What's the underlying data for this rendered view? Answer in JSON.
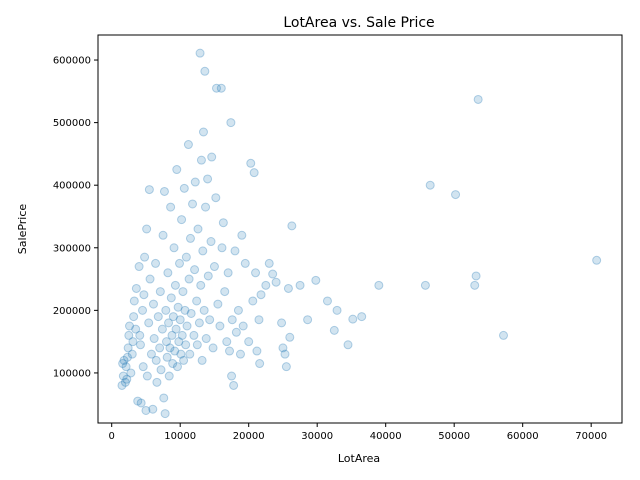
{
  "chart_data": {
    "type": "scatter",
    "title": "LotArea vs. Sale Price",
    "xlabel": "LotArea",
    "ylabel": "SalePrice",
    "xlim": [
      -2000,
      74500
    ],
    "ylim": [
      20000,
      640000
    ],
    "xticks": [
      0,
      10000,
      20000,
      30000,
      40000,
      50000,
      60000,
      70000
    ],
    "yticks": [
      100000,
      200000,
      300000,
      400000,
      500000,
      600000
    ],
    "xtick_labels": [
      "0",
      "10000",
      "20000",
      "30000",
      "40000",
      "50000",
      "60000",
      "70000"
    ],
    "ytick_labels": [
      "100000",
      "200000",
      "300000",
      "400000",
      "500000",
      "600000"
    ],
    "grid": false,
    "marker_color": "#1f77b4",
    "marker_alpha": 0.2,
    "points": [
      [
        1500,
        80000
      ],
      [
        1600,
        115000
      ],
      [
        1700,
        95000
      ],
      [
        1800,
        120000
      ],
      [
        2000,
        85000
      ],
      [
        2100,
        110000
      ],
      [
        2200,
        90000
      ],
      [
        2300,
        125000
      ],
      [
        2400,
        140000
      ],
      [
        2500,
        160000
      ],
      [
        2600,
        175000
      ],
      [
        2800,
        100000
      ],
      [
        3000,
        130000
      ],
      [
        3100,
        150000
      ],
      [
        3200,
        190000
      ],
      [
        3300,
        215000
      ],
      [
        3500,
        170000
      ],
      [
        3600,
        235000
      ],
      [
        3800,
        55000
      ],
      [
        4000,
        270000
      ],
      [
        4100,
        160000
      ],
      [
        4200,
        145000
      ],
      [
        4300,
        52000
      ],
      [
        4500,
        200000
      ],
      [
        4600,
        110000
      ],
      [
        4700,
        225000
      ],
      [
        4800,
        285000
      ],
      [
        5000,
        40000
      ],
      [
        5100,
        330000
      ],
      [
        5200,
        95000
      ],
      [
        5400,
        180000
      ],
      [
        5500,
        393000
      ],
      [
        5600,
        250000
      ],
      [
        5800,
        130000
      ],
      [
        6000,
        42000
      ],
      [
        6100,
        210000
      ],
      [
        6200,
        155000
      ],
      [
        6400,
        275000
      ],
      [
        6500,
        120000
      ],
      [
        6600,
        85000
      ],
      [
        6800,
        190000
      ],
      [
        7000,
        140000
      ],
      [
        7100,
        230000
      ],
      [
        7200,
        105000
      ],
      [
        7400,
        170000
      ],
      [
        7500,
        320000
      ],
      [
        7600,
        60000
      ],
      [
        7700,
        390000
      ],
      [
        7800,
        35000
      ],
      [
        7900,
        200000
      ],
      [
        8000,
        150000
      ],
      [
        8100,
        125000
      ],
      [
        8200,
        260000
      ],
      [
        8300,
        180000
      ],
      [
        8400,
        95000
      ],
      [
        8500,
        140000
      ],
      [
        8600,
        365000
      ],
      [
        8700,
        220000
      ],
      [
        8800,
        160000
      ],
      [
        8900,
        115000
      ],
      [
        9000,
        190000
      ],
      [
        9100,
        300000
      ],
      [
        9200,
        135000
      ],
      [
        9300,
        240000
      ],
      [
        9400,
        170000
      ],
      [
        9500,
        425000
      ],
      [
        9600,
        110000
      ],
      [
        9700,
        205000
      ],
      [
        9800,
        150000
      ],
      [
        9900,
        275000
      ],
      [
        10000,
        185000
      ],
      [
        10100,
        130000
      ],
      [
        10200,
        345000
      ],
      [
        10300,
        160000
      ],
      [
        10400,
        230000
      ],
      [
        10500,
        120000
      ],
      [
        10600,
        395000
      ],
      [
        10700,
        200000
      ],
      [
        10800,
        145000
      ],
      [
        10900,
        285000
      ],
      [
        11000,
        175000
      ],
      [
        11200,
        465000
      ],
      [
        11300,
        250000
      ],
      [
        11400,
        130000
      ],
      [
        11500,
        315000
      ],
      [
        11600,
        195000
      ],
      [
        11800,
        370000
      ],
      [
        12000,
        160000
      ],
      [
        12100,
        265000
      ],
      [
        12200,
        405000
      ],
      [
        12400,
        215000
      ],
      [
        12500,
        145000
      ],
      [
        12600,
        330000
      ],
      [
        12800,
        180000
      ],
      [
        12900,
        611000
      ],
      [
        13000,
        240000
      ],
      [
        13100,
        440000
      ],
      [
        13200,
        120000
      ],
      [
        13300,
        295000
      ],
      [
        13400,
        485000
      ],
      [
        13500,
        200000
      ],
      [
        13600,
        582000
      ],
      [
        13700,
        365000
      ],
      [
        13800,
        155000
      ],
      [
        14000,
        410000
      ],
      [
        14100,
        255000
      ],
      [
        14300,
        185000
      ],
      [
        14500,
        310000
      ],
      [
        14600,
        445000
      ],
      [
        14800,
        140000
      ],
      [
        15000,
        270000
      ],
      [
        15200,
        380000
      ],
      [
        15300,
        555000
      ],
      [
        15500,
        210000
      ],
      [
        15800,
        175000
      ],
      [
        16000,
        555000
      ],
      [
        16100,
        300000
      ],
      [
        16300,
        340000
      ],
      [
        16500,
        230000
      ],
      [
        16800,
        150000
      ],
      [
        17000,
        260000
      ],
      [
        17200,
        135000
      ],
      [
        17400,
        500000
      ],
      [
        17500,
        95000
      ],
      [
        17600,
        185000
      ],
      [
        17800,
        80000
      ],
      [
        18000,
        295000
      ],
      [
        18200,
        165000
      ],
      [
        18500,
        200000
      ],
      [
        18800,
        130000
      ],
      [
        19000,
        320000
      ],
      [
        19200,
        175000
      ],
      [
        19500,
        275000
      ],
      [
        20000,
        150000
      ],
      [
        20300,
        435000
      ],
      [
        20600,
        215000
      ],
      [
        20800,
        420000
      ],
      [
        21000,
        260000
      ],
      [
        21200,
        135000
      ],
      [
        21500,
        185000
      ],
      [
        21600,
        115000
      ],
      [
        21800,
        225000
      ],
      [
        22500,
        240000
      ],
      [
        23000,
        275000
      ],
      [
        23500,
        258000
      ],
      [
        24000,
        245000
      ],
      [
        24800,
        180000
      ],
      [
        25000,
        140000
      ],
      [
        25300,
        130000
      ],
      [
        25500,
        110000
      ],
      [
        25800,
        235000
      ],
      [
        26000,
        157000
      ],
      [
        26300,
        335000
      ],
      [
        27500,
        240000
      ],
      [
        28600,
        185000
      ],
      [
        29800,
        248000
      ],
      [
        31500,
        215000
      ],
      [
        32500,
        168000
      ],
      [
        32900,
        200000
      ],
      [
        34500,
        145000
      ],
      [
        35200,
        186000
      ],
      [
        36500,
        190000
      ],
      [
        39000,
        240000
      ],
      [
        45800,
        240000
      ],
      [
        46500,
        400000
      ],
      [
        50200,
        385000
      ],
      [
        53000,
        240000
      ],
      [
        53200,
        255000
      ],
      [
        53500,
        537000
      ],
      [
        57200,
        160000
      ],
      [
        70800,
        280000
      ]
    ]
  }
}
